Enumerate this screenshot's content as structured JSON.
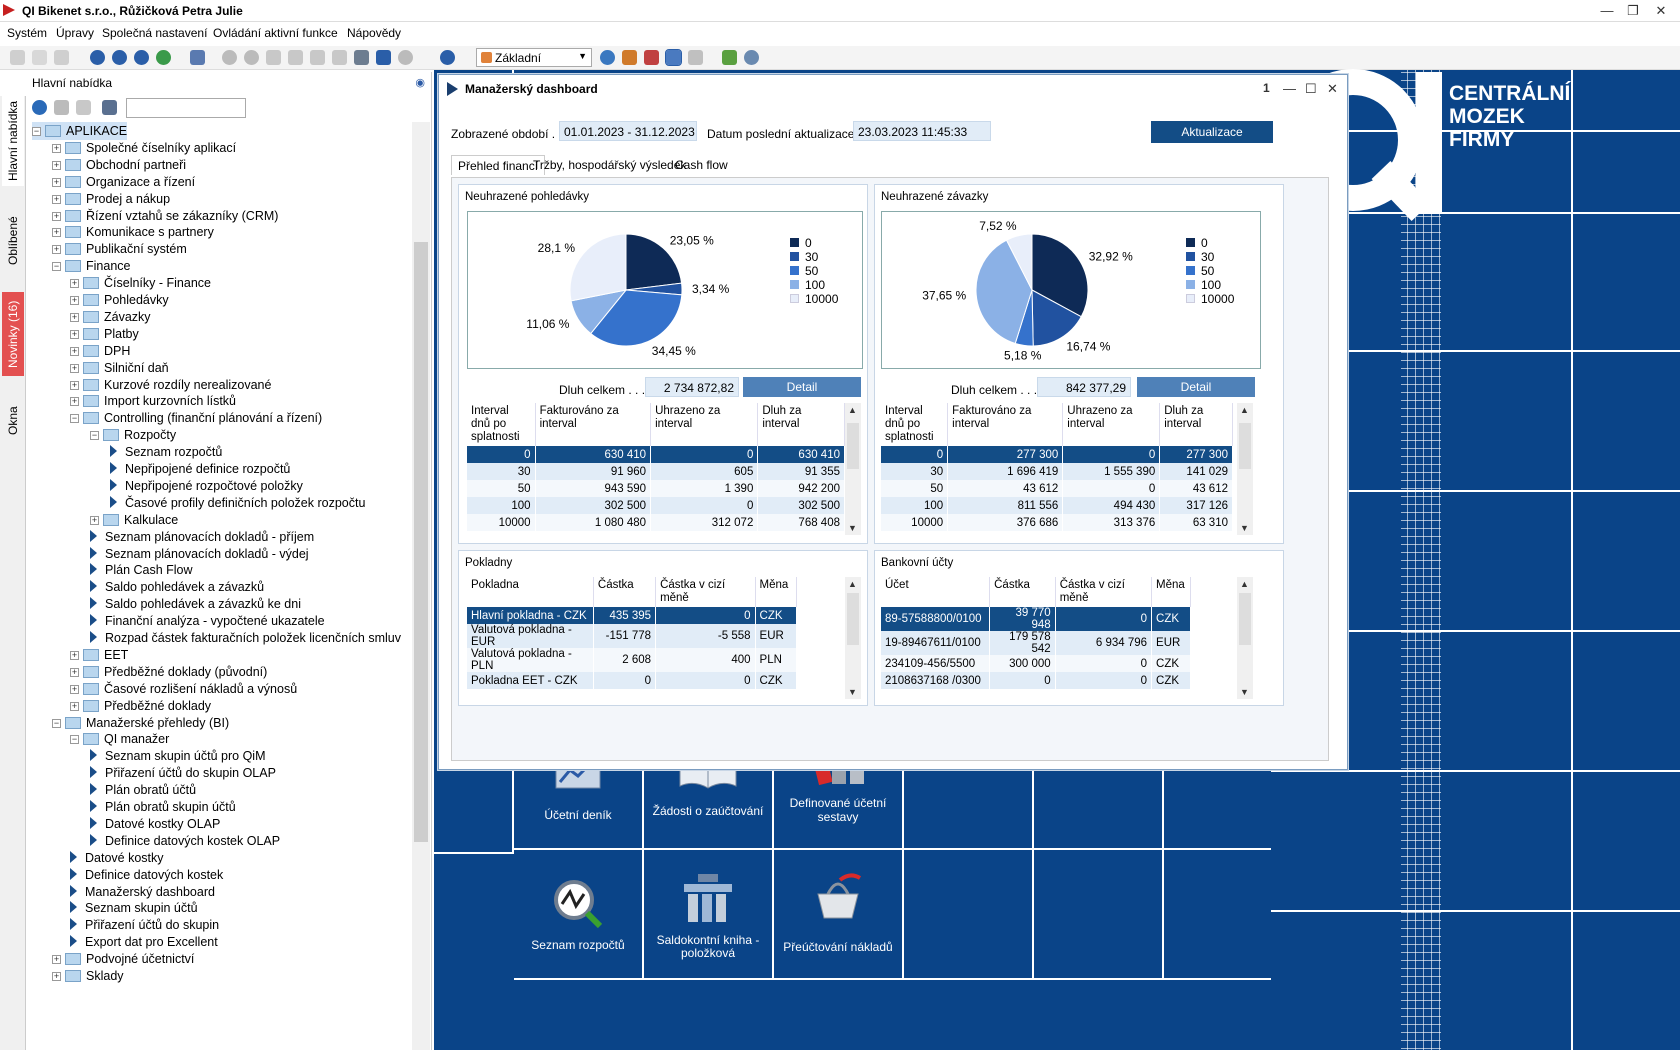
{
  "window": {
    "title": "QI  Bikenet s.r.o., Růžičková Petra Julie"
  },
  "menu": [
    "Systém",
    "Úpravy",
    "Společná nastavení",
    "Ovládání aktivní funkce",
    "Nápovědy"
  ],
  "toolbar": {
    "profile": "Základní"
  },
  "vtabs": {
    "main": "Hlavní nabídka",
    "favorites": "Oblíbené",
    "news": "Novinky (16)",
    "windows": "Okna"
  },
  "nav": {
    "title": "Hlavní nabídka",
    "tree": [
      {
        "label": "APLIKACE",
        "level": 0,
        "type": "root",
        "expanded": true,
        "selected": true
      },
      {
        "label": "Společné číselníky aplikací",
        "level": 1,
        "type": "folder"
      },
      {
        "label": "Obchodní partneři",
        "level": 1,
        "type": "folder"
      },
      {
        "label": "Organizace a řízení",
        "level": 1,
        "type": "folder"
      },
      {
        "label": "Prodej a nákup",
        "level": 1,
        "type": "folder"
      },
      {
        "label": "Řízení vztahů se zákazníky (CRM)",
        "level": 1,
        "type": "folder"
      },
      {
        "label": "Komunikace s partnery",
        "level": 1,
        "type": "folder"
      },
      {
        "label": "Publikační systém",
        "level": 1,
        "type": "folder"
      },
      {
        "label": "Finance",
        "level": 1,
        "type": "folder",
        "expanded": true
      },
      {
        "label": "Číselníky - Finance",
        "level": 2,
        "type": "folder"
      },
      {
        "label": "Pohledávky",
        "level": 2,
        "type": "folder"
      },
      {
        "label": "Závazky",
        "level": 2,
        "type": "folder"
      },
      {
        "label": "Platby",
        "level": 2,
        "type": "folder"
      },
      {
        "label": "DPH",
        "level": 2,
        "type": "folder"
      },
      {
        "label": "Silniční daň",
        "level": 2,
        "type": "folder"
      },
      {
        "label": "Kurzové rozdíly nerealizované",
        "level": 2,
        "type": "folder"
      },
      {
        "label": "Import kurzovních lístků",
        "level": 2,
        "type": "folder"
      },
      {
        "label": "Controlling (finanční plánování a řízení)",
        "level": 2,
        "type": "folder",
        "expanded": true
      },
      {
        "label": "Rozpočty",
        "level": 3,
        "type": "folder",
        "expanded": true
      },
      {
        "label": "Seznam rozpočtů",
        "level": 4,
        "type": "item"
      },
      {
        "label": "Nepřipojené definice rozpočtů",
        "level": 4,
        "type": "item"
      },
      {
        "label": "Nepřipojené rozpočtové položky",
        "level": 4,
        "type": "item"
      },
      {
        "label": "Časové profily definičních položek rozpočtu",
        "level": 4,
        "type": "item"
      },
      {
        "label": "Kalkulace",
        "level": 3,
        "type": "folder"
      },
      {
        "label": "Seznam plánovacích dokladů - příjem",
        "level": 3,
        "type": "item"
      },
      {
        "label": "Seznam plánovacích dokladů - výdej",
        "level": 3,
        "type": "item"
      },
      {
        "label": "Plán Cash Flow",
        "level": 3,
        "type": "item"
      },
      {
        "label": "Saldo pohledávek a závazků",
        "level": 3,
        "type": "item"
      },
      {
        "label": "Saldo pohledávek a závazků ke dni",
        "level": 3,
        "type": "item"
      },
      {
        "label": "Finanční analýza - vypočtené ukazatele",
        "level": 3,
        "type": "item"
      },
      {
        "label": "Rozpad částek fakturačních položek licenčních smluv",
        "level": 3,
        "type": "item"
      },
      {
        "label": "EET",
        "level": 2,
        "type": "folder"
      },
      {
        "label": "Předběžné doklady (původní)",
        "level": 2,
        "type": "folder"
      },
      {
        "label": "Časové rozlišení nákladů a výnosů",
        "level": 2,
        "type": "folder"
      },
      {
        "label": "Předběžné doklady",
        "level": 2,
        "type": "folder"
      },
      {
        "label": "Manažerské přehledy (BI)",
        "level": 1,
        "type": "folder",
        "expanded": true
      },
      {
        "label": "QI manažer",
        "level": 2,
        "type": "folder",
        "expanded": true
      },
      {
        "label": "Seznam skupin účtů pro QiM",
        "level": 3,
        "type": "item"
      },
      {
        "label": "Přiřazení účtů do skupin OLAP",
        "level": 3,
        "type": "item"
      },
      {
        "label": "Plán obratů účtů",
        "level": 3,
        "type": "item"
      },
      {
        "label": "Plán obratů skupin účtů",
        "level": 3,
        "type": "item"
      },
      {
        "label": "Datové kostky OLAP",
        "level": 3,
        "type": "item"
      },
      {
        "label": "Definice datových kostek OLAP",
        "level": 3,
        "type": "item"
      },
      {
        "label": "Datové kostky",
        "level": 2,
        "type": "item"
      },
      {
        "label": "Definice datových kostek",
        "level": 2,
        "type": "item"
      },
      {
        "label": "Manažerský dashboard",
        "level": 2,
        "type": "item"
      },
      {
        "label": "Seznam skupin účtů",
        "level": 2,
        "type": "item"
      },
      {
        "label": "Přiřazení účtů do skupin",
        "level": 2,
        "type": "item"
      },
      {
        "label": "Export dat pro Excellent",
        "level": 2,
        "type": "item"
      },
      {
        "label": "Podvojné účetnictví",
        "level": 1,
        "type": "folder"
      },
      {
        "label": "Sklady",
        "level": 1,
        "type": "folder"
      }
    ]
  },
  "dashboard": {
    "title": "Manažerský dashboard",
    "window_number": "1",
    "period_label": "Zobrazené období  . .",
    "period_value": "01.01.2023 - 31.12.2023",
    "update_label": "Datum poslední aktualizace  . .",
    "update_value": "23.03.2023 11:45:33",
    "refresh_button": "Aktualizace",
    "tabs": [
      "Přehled financí",
      "Tržby, hospodářský výsledek",
      "Cash flow"
    ],
    "receivables": {
      "title": "Neuhrazené pohledávky",
      "debt_label": "Dluh celkem  . . .",
      "debt_value": "2 734 872,82",
      "detail_button": "Detail",
      "headers": [
        "Interval dnů po splatnosti",
        "Fakturováno za interval",
        "Uhrazeno za interval",
        "Dluh za interval"
      ],
      "rows": [
        [
          "0",
          "630 410",
          "0",
          "630 410"
        ],
        [
          "30",
          "91 960",
          "605",
          "91 355"
        ],
        [
          "50",
          "943 590",
          "1 390",
          "942 200"
        ],
        [
          "100",
          "302 500",
          "0",
          "302 500"
        ],
        [
          "10000",
          "1 080 480",
          "312 072",
          "768 408"
        ]
      ]
    },
    "payables": {
      "title": "Neuhrazené závazky",
      "debt_label": "Dluh celkem  . . .",
      "debt_value": "842 377,29",
      "detail_button": "Detail",
      "headers": [
        "Interval dnů po splatnosti",
        "Fakturováno za interval",
        "Uhrazeno za interval",
        "Dluh za interval"
      ],
      "rows": [
        [
          "0",
          "277 300",
          "0",
          "277 300"
        ],
        [
          "30",
          "1 696 419",
          "1 555 390",
          "141 029"
        ],
        [
          "50",
          "43 612",
          "0",
          "43 612"
        ],
        [
          "100",
          "811 556",
          "494 430",
          "317 126"
        ],
        [
          "10000",
          "376 686",
          "313 376",
          "63 310"
        ]
      ]
    },
    "cash": {
      "title": "Pokladny",
      "headers": [
        "Pokladna",
        "Částka",
        "Částka v cizí měně",
        "Měna"
      ],
      "rows": [
        [
          "Hlavní pokladna - CZK",
          "435 395",
          "0",
          "CZK"
        ],
        [
          "Valutová pokladna - EUR",
          "-151 778",
          "-5 558",
          "EUR"
        ],
        [
          "Valutová pokladna - PLN",
          "2 608",
          "400",
          "PLN"
        ],
        [
          "Pokladna EET - CZK",
          "0",
          "0",
          "CZK"
        ]
      ]
    },
    "bank": {
      "title": "Bankovní účty",
      "headers": [
        "Účet",
        "Částka",
        "Částka v cizí měně",
        "Měna"
      ],
      "rows": [
        [
          "89-57588800/0100",
          "39 770 948",
          "0",
          "CZK"
        ],
        [
          "19-89467611/0100",
          "179 578 542",
          "6 934 796",
          "EUR"
        ],
        [
          "234109-456/5500",
          "300 000",
          "0",
          "CZK"
        ],
        [
          "2108637168 /0300",
          "0",
          "0",
          "CZK"
        ]
      ]
    }
  },
  "chart_data": [
    {
      "type": "pie",
      "title": "Neuhrazené pohledávky",
      "categories": [
        "0",
        "30",
        "50",
        "100",
        "10000"
      ],
      "values": [
        23.05,
        3.34,
        34.45,
        11.06,
        28.1
      ],
      "labels": [
        "23,05 %",
        "3,34 %",
        "34,45 %",
        "11,06 %",
        "28,1 %"
      ],
      "colors": [
        "#0e2a56",
        "#2152a0",
        "#3572cc",
        "#8bb1e6",
        "#e8eefa"
      ],
      "legend": "right"
    },
    {
      "type": "pie",
      "title": "Neuhrazené závazky",
      "categories": [
        "0",
        "30",
        "50",
        "100",
        "10000"
      ],
      "values": [
        32.92,
        16.74,
        5.18,
        37.65,
        7.52
      ],
      "labels": [
        "32,92 %",
        "16,74 %",
        "5,18 %",
        "37,65 %",
        "7,52 %"
      ],
      "colors": [
        "#0e2a56",
        "#2152a0",
        "#3572cc",
        "#8bb1e6",
        "#e8eefa"
      ],
      "legend": "right"
    }
  ],
  "desktop": {
    "brand_line1": "CENTRÁLNÍ",
    "brand_line2": "MOZEK",
    "brand_line3": "FIRMY",
    "tiles": [
      "Účetní deník",
      "Žádosti o zaúčtování",
      "Definované účetní sestavy",
      "Seznam rozpočtů",
      "Saldokontní kniha - položková",
      "Přeúčtování nákladů"
    ]
  }
}
